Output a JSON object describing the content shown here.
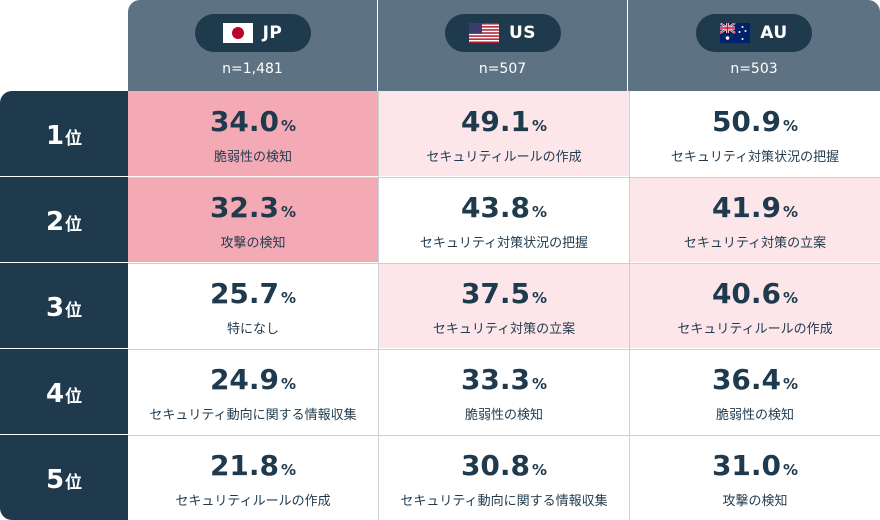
{
  "columns": [
    {
      "code": "JP",
      "n": "n=1,481",
      "flag": "japan-flag-icon"
    },
    {
      "code": "US",
      "n": "n=507",
      "flag": "usa-flag-icon"
    },
    {
      "code": "AU",
      "n": "n=503",
      "flag": "australia-flag-icon"
    }
  ],
  "rank_suffix": "位",
  "rows": [
    {
      "rank": "1",
      "cells": [
        {
          "value": "34.0",
          "unit": "%",
          "label": "脆弱性の検知",
          "shade": "strong"
        },
        {
          "value": "49.1",
          "unit": "%",
          "label": "セキュリティルールの作成",
          "shade": "light"
        },
        {
          "value": "50.9",
          "unit": "%",
          "label": "セキュリティ対策状況の把握",
          "shade": "white"
        }
      ]
    },
    {
      "rank": "2",
      "cells": [
        {
          "value": "32.3",
          "unit": "%",
          "label": "攻撃の検知",
          "shade": "strong"
        },
        {
          "value": "43.8",
          "unit": "%",
          "label": "セキュリティ対策状況の把握",
          "shade": "white"
        },
        {
          "value": "41.9",
          "unit": "%",
          "label": "セキュリティ対策の立案",
          "shade": "light"
        }
      ]
    },
    {
      "rank": "3",
      "cells": [
        {
          "value": "25.7",
          "unit": "%",
          "label": "特になし",
          "shade": "white"
        },
        {
          "value": "37.5",
          "unit": "%",
          "label": "セキュリティ対策の立案",
          "shade": "light"
        },
        {
          "value": "40.6",
          "unit": "%",
          "label": "セキュリティルールの作成",
          "shade": "light"
        }
      ]
    },
    {
      "rank": "4",
      "cells": [
        {
          "value": "24.9",
          "unit": "%",
          "label": "セキュリティ動向に関する情報収集",
          "shade": "white"
        },
        {
          "value": "33.3",
          "unit": "%",
          "label": "脆弱性の検知",
          "shade": "white"
        },
        {
          "value": "36.4",
          "unit": "%",
          "label": "脆弱性の検知",
          "shade": "white"
        }
      ]
    },
    {
      "rank": "5",
      "cells": [
        {
          "value": "21.8",
          "unit": "%",
          "label": "セキュリティルールの作成",
          "shade": "white"
        },
        {
          "value": "30.8",
          "unit": "%",
          "label": "セキュリティ動向に関する情報収集",
          "shade": "white"
        },
        {
          "value": "31.0",
          "unit": "%",
          "label": "攻撃の検知",
          "shade": "white"
        }
      ]
    }
  ],
  "colors": {
    "header": "#5d7282",
    "dark": "#1e3a4c",
    "strong": "#f3aab4",
    "light": "#fce6ea"
  }
}
